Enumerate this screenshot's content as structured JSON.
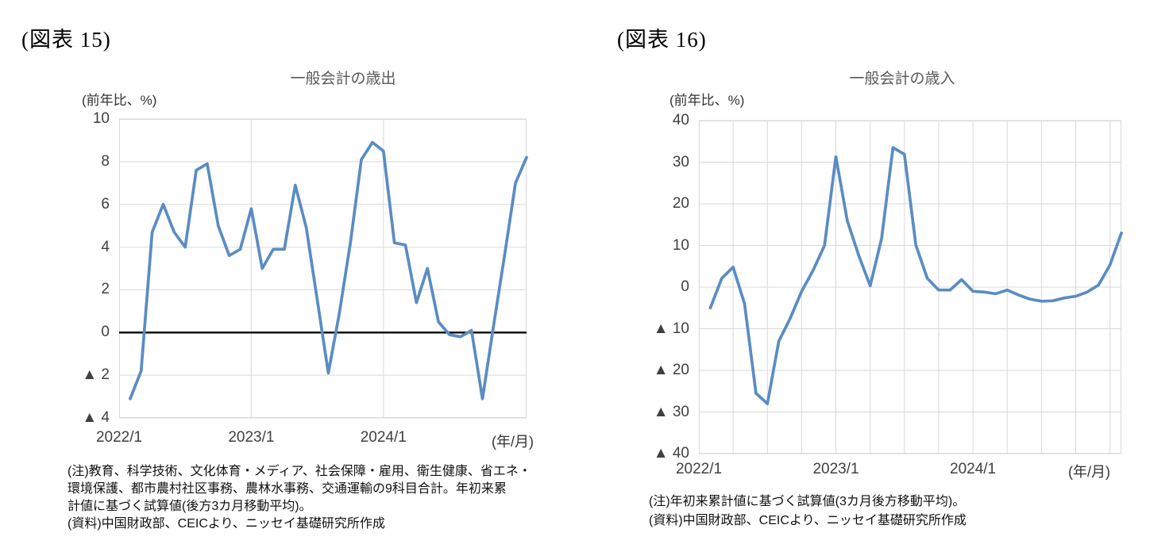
{
  "figure15": {
    "label": "(図表 15)",
    "title": "一般会計の歳出",
    "y_axis_caption": "(前年比、%)",
    "x_axis_caption": "(年/月)",
    "notes": [
      "(注)教育、科学技術、文化体育・メディア、社会保障・雇用、衛生健康、省エネ・",
      "環境保護、都市農村社区事務、農林水事務、交通運輸の9科目合計。年初来累",
      "計値に基づく試算値(後方3カ月移動平均)。",
      "(資料)中国財政部、CEICより、ニッセイ基礎研究所作成"
    ]
  },
  "figure16": {
    "label": "(図表 16)",
    "title": "一般会計の歳入",
    "y_axis_caption": "(前年比、%)",
    "x_axis_caption": "(年/月)",
    "notes": [
      "(注)年初来累計値に基づく試算値(3カ月後方移動平均)。",
      "(資料)中国財政部、CEICより、ニッセイ基礎研究所作成"
    ]
  },
  "colors": {
    "line": "#5A8CC3",
    "gridline": "#D9D9D9",
    "zero_line": "#000000",
    "tick_text": "#404040",
    "title_text": "#595959"
  },
  "chart_data": [
    {
      "id": "expenditure",
      "type": "line",
      "title": "一般会計の歳出",
      "ylabel": "前年比、%",
      "xlabel": "年/月",
      "ylim": [
        -4,
        10
      ],
      "ytick_interval": 2,
      "y_tick_labels": [
        "10",
        "8",
        "6",
        "4",
        "2",
        "0",
        "▲ 2",
        "▲ 4"
      ],
      "x_tick_labels": [
        {
          "label": "2022/1",
          "month_index": 0
        },
        {
          "label": "2023/1",
          "month_index": 12
        },
        {
          "label": "2024/1",
          "month_index": 24
        }
      ],
      "x_total_months": 37,
      "x_vertical_gridline_months": [
        12,
        24
      ],
      "zero_line": true,
      "grid": true,
      "legend": "none",
      "months": [
        "2022/2",
        "2022/3",
        "2022/4",
        "2022/5",
        "2022/6",
        "2022/7",
        "2022/8",
        "2022/9",
        "2022/10",
        "2022/11",
        "2022/12",
        "2023/1",
        "2023/2",
        "2023/3",
        "2023/4",
        "2023/5",
        "2023/6",
        "2023/7",
        "2023/8",
        "2023/9",
        "2023/10",
        "2023/11",
        "2023/12",
        "2024/1",
        "2024/2",
        "2024/3",
        "2024/4",
        "2024/5",
        "2024/6",
        "2024/7",
        "2024/8",
        "2024/9",
        "2024/10",
        "2024/11",
        "2024/12",
        "2025/1",
        "2025/2"
      ],
      "values": [
        -3.1,
        -1.8,
        4.7,
        6.0,
        4.7,
        4.0,
        7.6,
        7.9,
        5.0,
        3.6,
        3.9,
        5.8,
        3.0,
        3.9,
        3.9,
        6.9,
        4.9,
        1.5,
        -1.9,
        0.9,
        4.2,
        8.1,
        8.9,
        8.5,
        4.2,
        4.1,
        1.4,
        3.0,
        0.5,
        -0.1,
        -0.2,
        0.1,
        -3.1,
        0.3,
        3.6,
        7.0,
        8.2
      ]
    },
    {
      "id": "revenue",
      "type": "line",
      "title": "一般会計の歳入",
      "ylabel": "前年比、%",
      "xlabel": "年/月",
      "ylim": [
        -40,
        40
      ],
      "ytick_interval": 10,
      "y_tick_labels": [
        "40",
        "30",
        "20",
        "10",
        "0",
        "▲ 10",
        "▲ 20",
        "▲ 30",
        "▲ 40"
      ],
      "x_tick_labels": [
        {
          "label": "2022/1",
          "month_index": 0
        },
        {
          "label": "2023/1",
          "month_index": 12
        },
        {
          "label": "2024/1",
          "month_index": 24
        }
      ],
      "x_total_months": 37,
      "x_vertical_gridline_months": [
        3,
        6,
        9,
        12,
        15,
        18,
        21,
        24,
        27,
        30,
        33,
        36
      ],
      "zero_line": false,
      "grid": true,
      "legend": "none",
      "months": [
        "2022/2",
        "2022/3",
        "2022/4",
        "2022/5",
        "2022/6",
        "2022/7",
        "2022/8",
        "2022/9",
        "2022/10",
        "2022/11",
        "2022/12",
        "2023/1",
        "2023/2",
        "2023/3",
        "2023/4",
        "2023/5",
        "2023/6",
        "2023/7",
        "2023/8",
        "2023/9",
        "2023/10",
        "2023/11",
        "2023/12",
        "2024/1",
        "2024/2",
        "2024/3",
        "2024/4",
        "2024/5",
        "2024/6",
        "2024/7",
        "2024/8",
        "2024/9",
        "2024/10",
        "2024/11",
        "2024/12",
        "2025/1",
        "2025/2"
      ],
      "values": [
        -5.0,
        2.1,
        4.8,
        -4.0,
        -25.5,
        -28.0,
        -13.0,
        -7.5,
        -1.0,
        4.0,
        10.0,
        31.3,
        15.9,
        7.6,
        0.3,
        11.7,
        33.5,
        31.9,
        10.1,
        2.1,
        -0.7,
        -0.7,
        1.8,
        -1.0,
        -1.2,
        -1.6,
        -0.7,
        -1.9,
        -2.9,
        -3.4,
        -3.3,
        -2.6,
        -2.2,
        -1.2,
        0.5,
        5.3,
        13.0
      ]
    }
  ]
}
